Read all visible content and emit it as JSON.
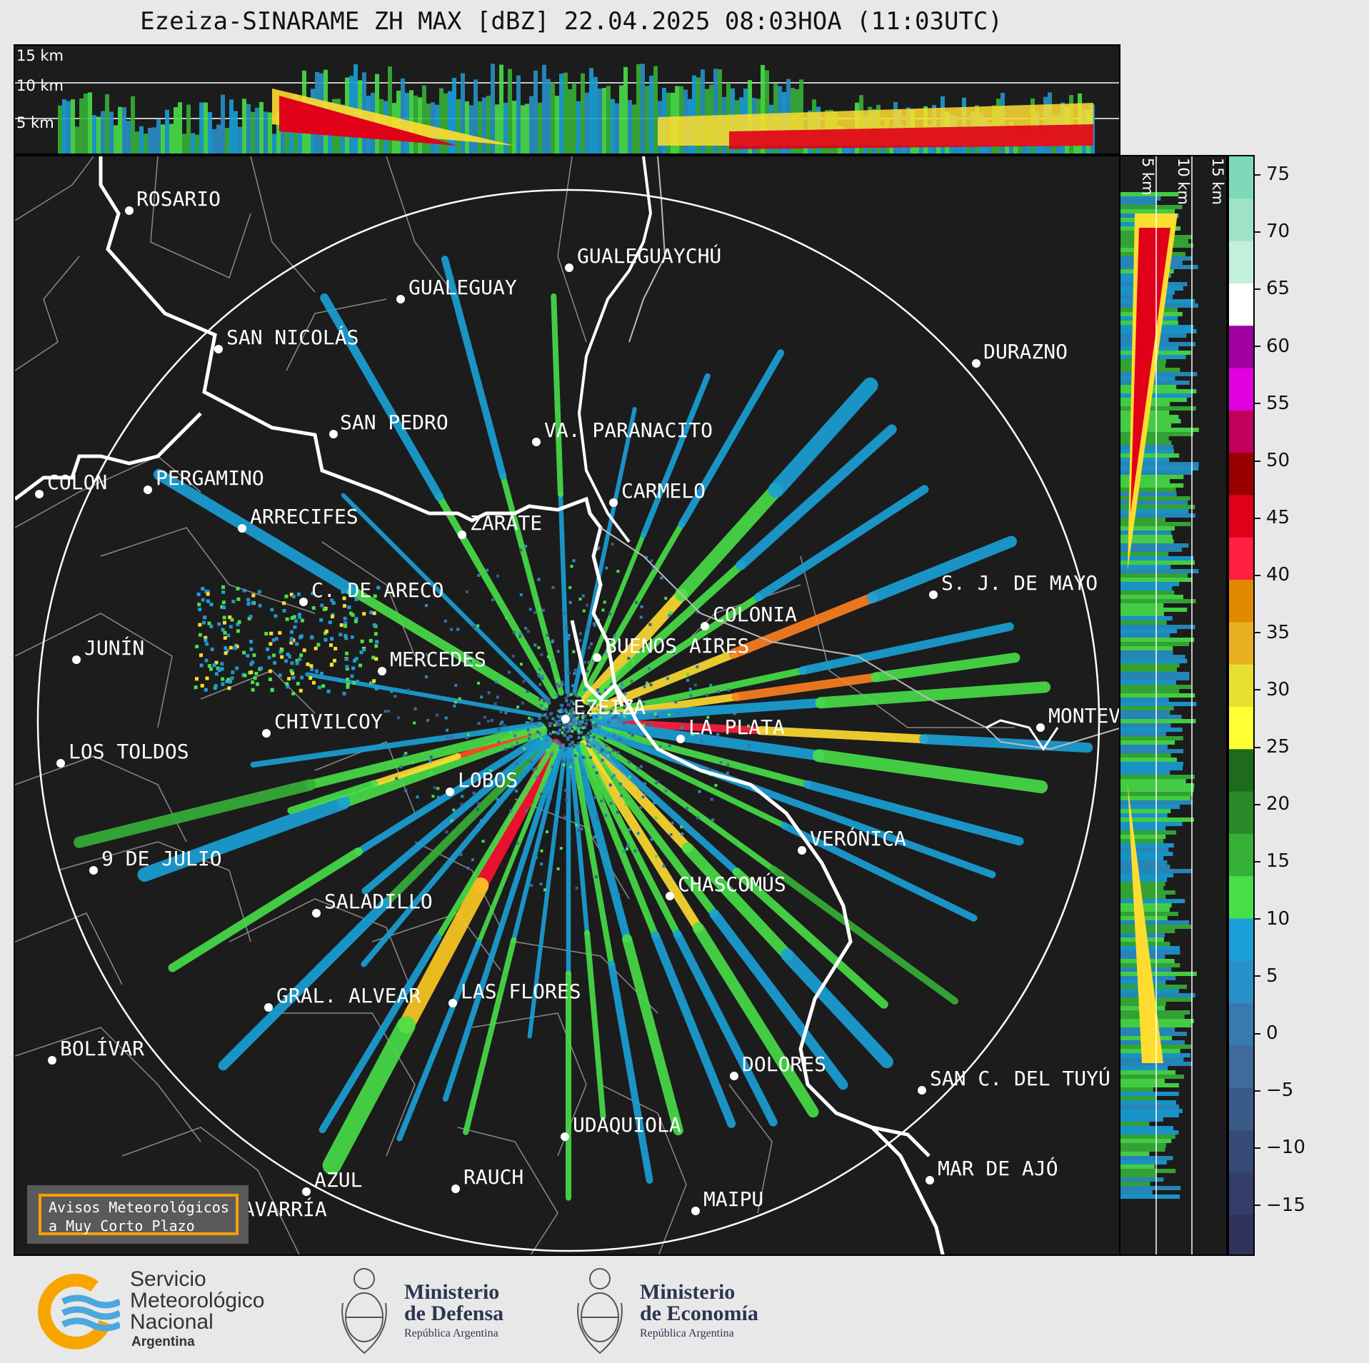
{
  "title": "Ezeiza-SINARAME ZH MAX [dBZ] 22.04.2025 08:03HOA (11:03UTC)",
  "height_labels": {
    "h15": "15 km",
    "h10": "10 km",
    "h5": "5 km"
  },
  "colorbar": {
    "ticks": [
      "75",
      "70",
      "65",
      "60",
      "55",
      "50",
      "45",
      "40",
      "35",
      "30",
      "25",
      "20",
      "15",
      "10",
      "5",
      "0",
      "−5",
      "−10",
      "−15"
    ]
  },
  "cities": [
    {
      "name": "ROSARIO"
    },
    {
      "name": "GUALEGUAYCHÚ"
    },
    {
      "name": "GUALEGUAY"
    },
    {
      "name": "SAN NICOLÁS"
    },
    {
      "name": "DURAZNO"
    },
    {
      "name": "SAN PEDRO"
    },
    {
      "name": "VA. PARANACITO"
    },
    {
      "name": "COLON"
    },
    {
      "name": "PERGAMINO"
    },
    {
      "name": "CARMELO"
    },
    {
      "name": "ARRECIFES"
    },
    {
      "name": "ZÁRATE"
    },
    {
      "name": "S. J. DE MAYO"
    },
    {
      "name": "C. DE ARECO"
    },
    {
      "name": "COLONIA"
    },
    {
      "name": "JUNÍN"
    },
    {
      "name": "BUENOS AIRES"
    },
    {
      "name": "MERCEDES"
    },
    {
      "name": "EZEIZA"
    },
    {
      "name": "MONTEV"
    },
    {
      "name": "CHIVILCOY"
    },
    {
      "name": "LA PLATA"
    },
    {
      "name": "LOS TOLDOS"
    },
    {
      "name": "LOBOS"
    },
    {
      "name": "VERÓNICA"
    },
    {
      "name": "9 DE JULIO"
    },
    {
      "name": "CHASCOMÚS"
    },
    {
      "name": "SALADILLO"
    },
    {
      "name": "GRAL. ALVEAR"
    },
    {
      "name": "LAS FLORES"
    },
    {
      "name": "BOLÍVAR"
    },
    {
      "name": "DOLORES"
    },
    {
      "name": "SAN C. DEL TUYÚ"
    },
    {
      "name": "UDAQUIOLA"
    },
    {
      "name": "MAR DE AJÓ"
    },
    {
      "name": "AZUL"
    },
    {
      "name": "RAUCH"
    },
    {
      "name": "OLAVARRÍA"
    },
    {
      "name": "MAIPU"
    }
  ],
  "avisos": "Avisos Meteorológicos\na Muy Corto Plazo",
  "logos": {
    "smn_line1": "Servicio",
    "smn_line2": "Meteorológico",
    "smn_line3": "Nacional",
    "smn_line4": "Argentina",
    "def_line1": "Ministerio",
    "def_line2": "de Defensa",
    "def_sub": "República Argentina",
    "eco_line1": "Ministerio",
    "eco_line2": "de Economía",
    "eco_sub": "República Argentina"
  },
  "colors": {
    "background": "#1c1c1c",
    "range_ring": "#ffffff",
    "coast": "#ffffff",
    "borders": "#8a8a8a",
    "avisos_border": "#f5a000",
    "smn_orange": "#f7a600",
    "smn_blue": "#4aa8de"
  }
}
